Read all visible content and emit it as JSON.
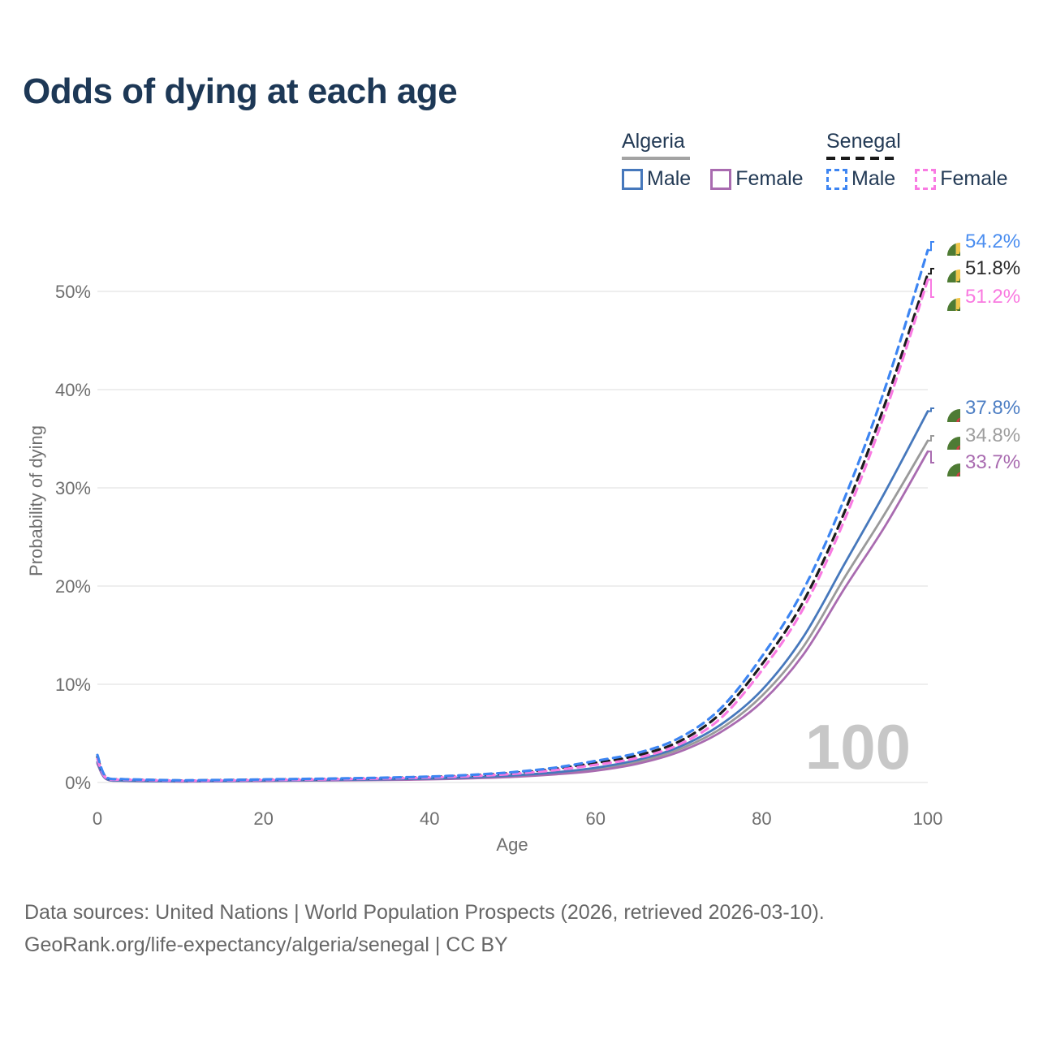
{
  "title": "Odds of dying at each age",
  "legend": {
    "algeria": {
      "label": "Algeria",
      "male": "Male",
      "female": "Female"
    },
    "senegal": {
      "label": "Senegal",
      "male": "Male",
      "female": "Female"
    }
  },
  "colors": {
    "algeria_male": "#4678bc",
    "algeria_total": "#9a9a9a",
    "algeria_female": "#a96bb0",
    "senegal_male": "#3d85f2",
    "senegal_total": "#1c1c1c",
    "senegal_female": "#f97ae2",
    "title_text": "#1d3856",
    "axis_text": "#6e6e6e",
    "gridline": "#e9e9e9",
    "watermark": "#c7c7c7"
  },
  "chart_data": {
    "type": "line",
    "title": "Odds of dying at each age",
    "xlabel": "Age",
    "ylabel": "Probability of dying",
    "xlim": [
      0,
      100
    ],
    "ylim_percent": [
      0,
      56
    ],
    "xticks": [
      0,
      20,
      40,
      60,
      80,
      100
    ],
    "yticks": [
      "0%",
      "10%",
      "20%",
      "30%",
      "40%",
      "50%"
    ],
    "grid": "horizontal-only",
    "legend_position": "top-right",
    "watermark": "100",
    "ages": [
      0,
      1,
      3,
      5,
      10,
      15,
      20,
      25,
      30,
      35,
      40,
      45,
      50,
      55,
      60,
      65,
      70,
      75,
      80,
      85,
      90,
      95,
      100
    ],
    "series": [
      {
        "name": "Senegal Male",
        "country": "senegal",
        "sex": "male",
        "style": "dashed",
        "color": "#3d85f2",
        "label_color": "#4b8ef0",
        "end_label": "54.2%",
        "values_percent": [
          2.8,
          0.6,
          0.35,
          0.3,
          0.22,
          0.26,
          0.31,
          0.36,
          0.42,
          0.5,
          0.6,
          0.78,
          1.05,
          1.5,
          2.2,
          3.0,
          4.5,
          7.5,
          12.8,
          19.6,
          29.0,
          40.5,
          54.2
        ]
      },
      {
        "name": "Senegal Total",
        "country": "senegal",
        "sex": "all",
        "style": "dashed",
        "color": "#1c1c1c",
        "label_color": "#2b2b2b",
        "end_label": "51.8%",
        "values_percent": [
          2.6,
          0.55,
          0.32,
          0.28,
          0.2,
          0.24,
          0.29,
          0.33,
          0.39,
          0.46,
          0.56,
          0.72,
          0.97,
          1.38,
          2.0,
          2.75,
          4.15,
          7.0,
          12.0,
          18.4,
          27.6,
          38.9,
          51.8
        ]
      },
      {
        "name": "Senegal Female",
        "country": "senegal",
        "sex": "female",
        "style": "dashed",
        "color": "#f97ae2",
        "label_color": "#f97ae0",
        "end_label": "51.2%",
        "values_percent": [
          2.4,
          0.5,
          0.3,
          0.26,
          0.18,
          0.21,
          0.26,
          0.3,
          0.35,
          0.42,
          0.51,
          0.65,
          0.88,
          1.25,
          1.8,
          2.5,
          3.85,
          6.5,
          11.4,
          17.7,
          26.8,
          38.0,
          51.2
        ]
      },
      {
        "name": "Algeria Male",
        "country": "algeria",
        "sex": "male",
        "style": "solid",
        "color": "#4678bc",
        "label_color": "#4e7fc4",
        "end_label": "37.8%",
        "values_percent": [
          2.1,
          0.42,
          0.2,
          0.16,
          0.13,
          0.15,
          0.2,
          0.24,
          0.28,
          0.33,
          0.4,
          0.52,
          0.72,
          1.02,
          1.5,
          2.3,
          3.6,
          5.85,
          9.4,
          14.8,
          22.3,
          29.8,
          37.8
        ]
      },
      {
        "name": "Algeria Total",
        "country": "algeria",
        "sex": "all",
        "style": "solid",
        "color": "#9a9a9a",
        "label_color": "#9e9e9e",
        "end_label": "34.8%",
        "values_percent": [
          2.0,
          0.4,
          0.18,
          0.15,
          0.11,
          0.13,
          0.17,
          0.21,
          0.25,
          0.29,
          0.36,
          0.46,
          0.64,
          0.92,
          1.35,
          2.1,
          3.35,
          5.45,
          8.8,
          13.8,
          20.9,
          27.6,
          34.8
        ]
      },
      {
        "name": "Algeria Female",
        "country": "algeria",
        "sex": "female",
        "style": "solid",
        "color": "#a96bb0",
        "label_color": "#a96bb0",
        "end_label": "33.7%",
        "values_percent": [
          1.9,
          0.38,
          0.17,
          0.14,
          0.1,
          0.12,
          0.15,
          0.19,
          0.22,
          0.26,
          0.32,
          0.42,
          0.57,
          0.82,
          1.2,
          1.9,
          3.1,
          5.1,
          8.2,
          13.0,
          19.8,
          26.3,
          33.7
        ]
      }
    ]
  },
  "footer": {
    "line1": "Data sources: United Nations | World Population Prospects (2026, retrieved 2026-03-10).",
    "line2": "GeoRank.org/life-expectancy/algeria/senegal | CC BY"
  }
}
